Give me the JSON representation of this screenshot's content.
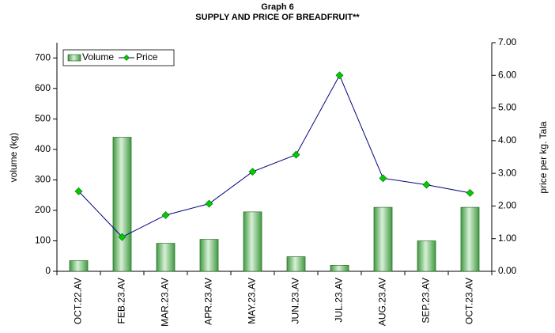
{
  "chart_data": {
    "type": "bar_line",
    "title": "Graph 6",
    "subtitle": "SUPPLY AND PRICE OF BREADFRUIT**",
    "y_label": "volume (kg)",
    "y2_label": "price per kg. Tala",
    "categories": [
      "OCT.22.AV",
      "FEB.23.AV",
      "MAR.23.AV",
      "APR.23.AV",
      "MAY.23.AV",
      "JUN.23.AV",
      "JUL.23.AV",
      "AUG.23.AV",
      "SEP.23.AV",
      "OCT.23.AV"
    ],
    "series": [
      {
        "name": "Volume",
        "type": "bar",
        "color": "#3f9a3f",
        "values": [
          35,
          440,
          92,
          105,
          195,
          48,
          20,
          210,
          100,
          210
        ]
      },
      {
        "name": "Price",
        "type": "line",
        "axis": "y2",
        "color": "#000080",
        "marker_color": "#00cc00",
        "values": [
          2.45,
          1.05,
          1.72,
          2.07,
          3.05,
          3.57,
          6.0,
          2.85,
          2.65,
          2.4
        ]
      }
    ],
    "ylim": [
      0,
      750
    ],
    "yticks": [
      0,
      100,
      200,
      300,
      400,
      500,
      600,
      700
    ],
    "y2lim": [
      0,
      7
    ],
    "y2ticks": [
      {
        "value": 0,
        "label": "0.00"
      },
      {
        "value": 1,
        "label": "1.00"
      },
      {
        "value": 2,
        "label": "2.00"
      },
      {
        "value": 3,
        "label": "3.00"
      },
      {
        "value": 4,
        "label": "4.00"
      },
      {
        "value": 5,
        "label": "5.00"
      },
      {
        "value": 6,
        "label": "6.00"
      },
      {
        "value": 7,
        "label": "7.00"
      }
    ],
    "legend": "top-left"
  }
}
